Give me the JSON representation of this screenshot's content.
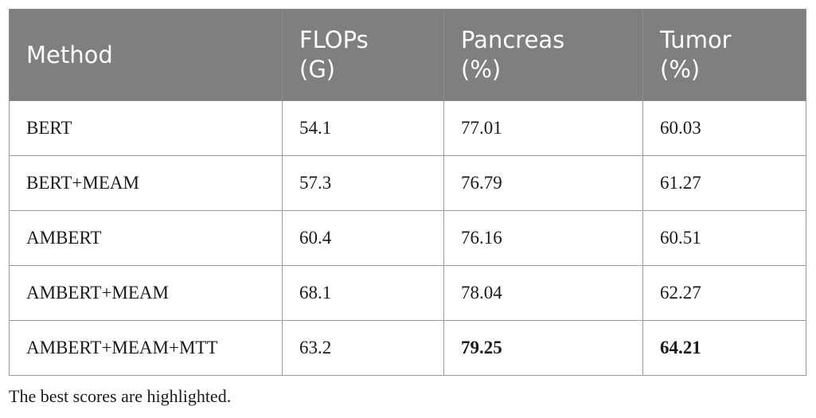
{
  "table": {
    "headers": [
      {
        "line1": "Method",
        "line2": ""
      },
      {
        "line1": "FLOPs",
        "line2": "(G)"
      },
      {
        "line1": "Pancreas",
        "line2": "(%)"
      },
      {
        "line1": "Tumor",
        "line2": "(%)"
      }
    ],
    "rows": [
      {
        "method": "BERT",
        "flops": "54.1",
        "pancreas": "77.01",
        "tumor": "60.03"
      },
      {
        "method": "BERT+MEAM",
        "flops": "57.3",
        "pancreas": "76.79",
        "tumor": "61.27"
      },
      {
        "method": "AMBERT",
        "flops": "60.4",
        "pancreas": "76.16",
        "tumor": "60.51"
      },
      {
        "method": "AMBERT+MEAM",
        "flops": "68.1",
        "pancreas": "78.04",
        "tumor": "62.27"
      },
      {
        "method": "AMBERT+MEAM+MTT",
        "flops": "63.2",
        "pancreas": "79.25",
        "tumor": "64.21"
      }
    ],
    "highlighted": {
      "pancreas_row": 4,
      "tumor_row": 4
    }
  },
  "footnote": "The best scores are highlighted."
}
